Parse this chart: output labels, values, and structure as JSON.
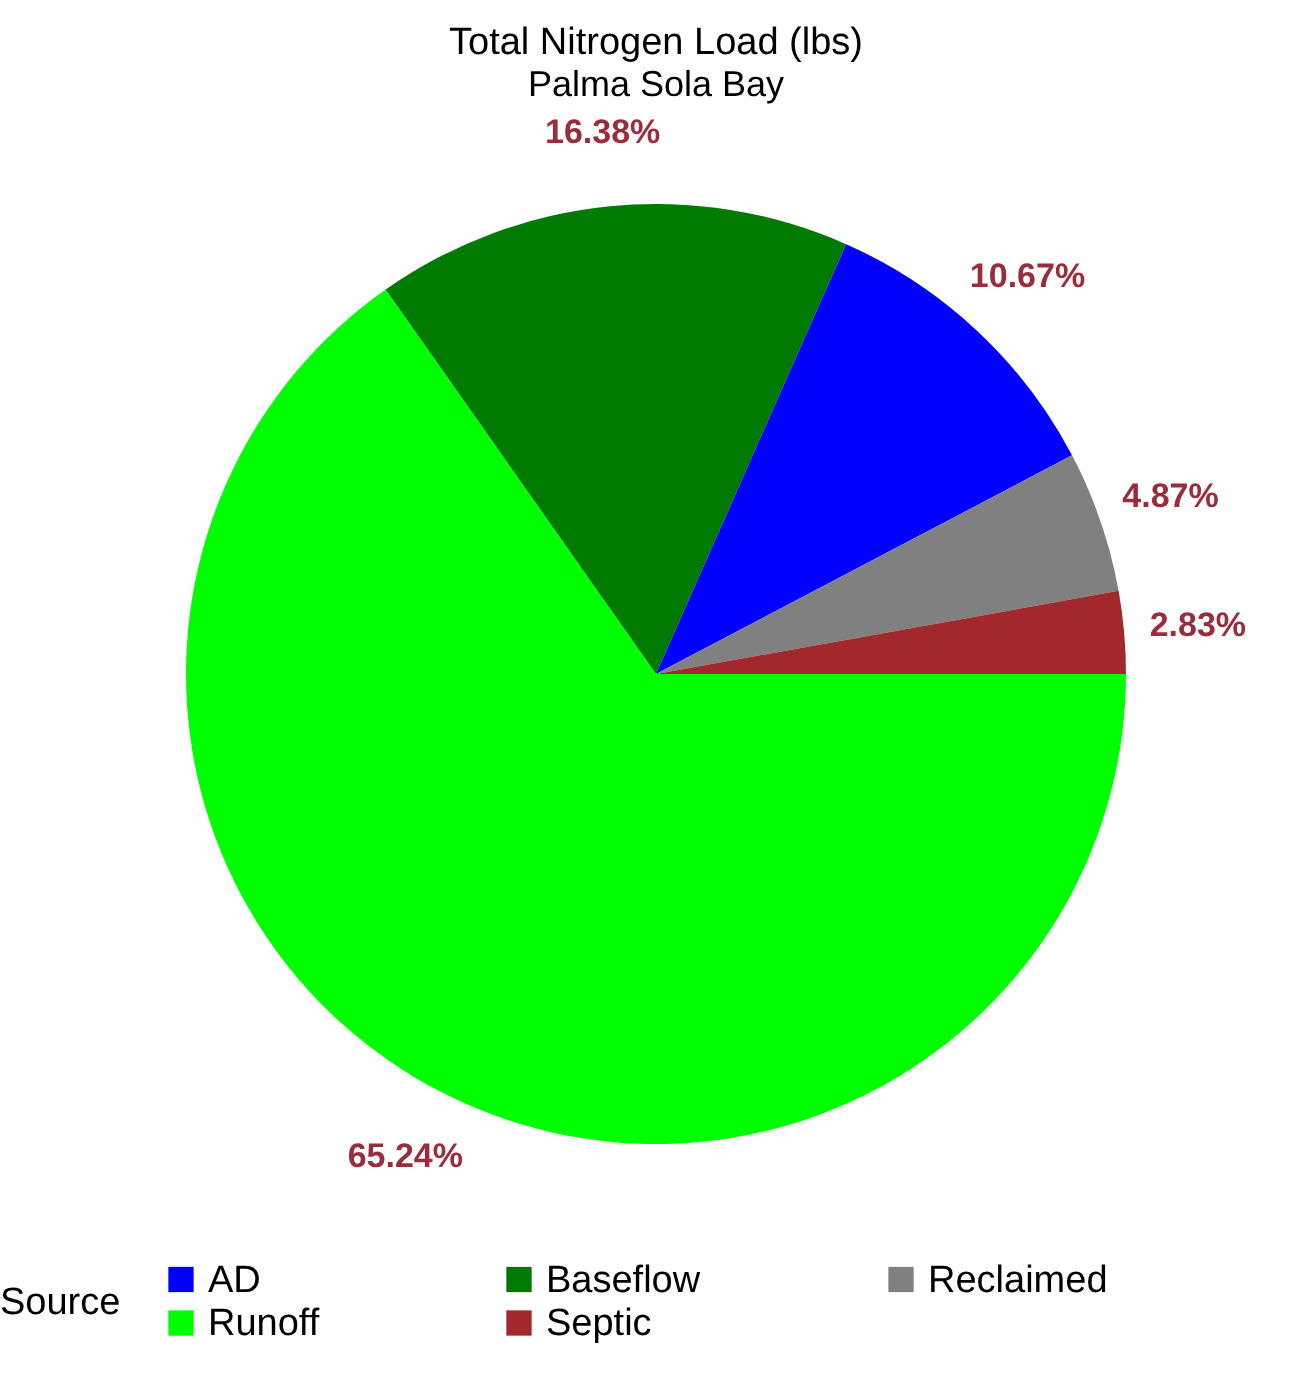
{
  "chart_data": {
    "type": "pie",
    "title": "Total Nitrogen Load (lbs)",
    "subtitle": "Palma Sola Bay",
    "legend_title": "Source",
    "legend": "bottom",
    "categories": [
      "Runoff",
      "Baseflow",
      "AD",
      "Reclaimed",
      "Septic"
    ],
    "values": [
      65.24,
      16.38,
      10.67,
      4.87,
      2.83
    ],
    "value_labels": [
      "65.24%",
      "16.38%",
      "10.67%",
      "4.87%",
      "2.83%"
    ],
    "colors": [
      "#00ff00",
      "#007a00",
      "#0000ff",
      "#808080",
      "#a3282b"
    ]
  }
}
